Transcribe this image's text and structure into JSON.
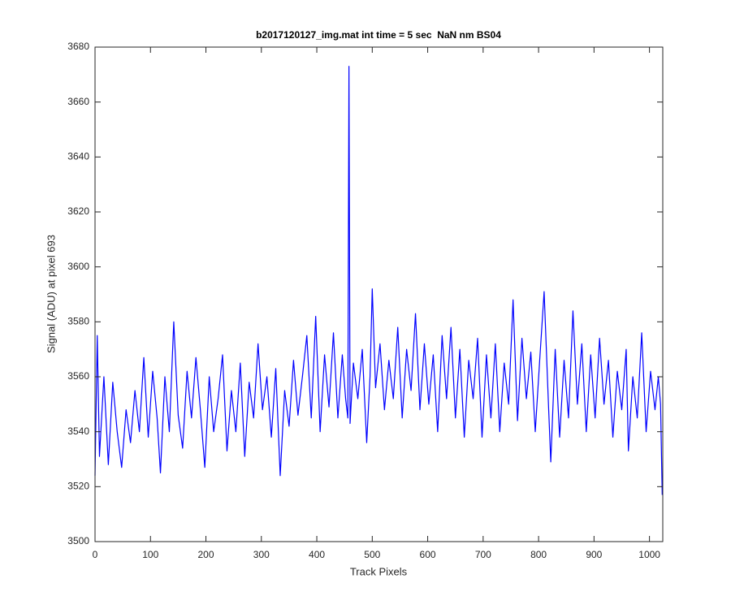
{
  "chart_data": {
    "type": "line",
    "title": "b2017120127_img.mat int time = 5 sec  NaN nm BS04",
    "x_label": "Track Pixels",
    "y_label": "Signal (ADU) at pixel 693",
    "xlim": [
      0,
      1024
    ],
    "ylim": [
      3500,
      3680
    ],
    "xticks": [
      0,
      100,
      200,
      300,
      400,
      500,
      600,
      700,
      800,
      900,
      1000
    ],
    "yticks": [
      3500,
      3520,
      3540,
      3560,
      3580,
      3600,
      3620,
      3640,
      3660,
      3680
    ],
    "grid": false,
    "x": [
      0,
      4,
      8,
      16,
      24,
      32,
      40,
      48,
      56,
      64,
      72,
      80,
      88,
      96,
      104,
      112,
      118,
      126,
      134,
      142,
      150,
      158,
      166,
      174,
      182,
      190,
      198,
      206,
      214,
      222,
      230,
      238,
      246,
      254,
      262,
      270,
      278,
      286,
      294,
      302,
      310,
      318,
      326,
      334,
      342,
      350,
      358,
      366,
      374,
      382,
      390,
      398,
      406,
      414,
      422,
      430,
      438,
      446,
      452,
      456,
      458,
      460,
      466,
      474,
      482,
      490,
      496,
      500,
      506,
      514,
      522,
      530,
      538,
      546,
      554,
      562,
      570,
      578,
      586,
      594,
      602,
      610,
      618,
      626,
      634,
      642,
      650,
      658,
      666,
      674,
      682,
      690,
      698,
      706,
      714,
      722,
      730,
      738,
      746,
      754,
      762,
      770,
      778,
      786,
      794,
      802,
      810,
      818,
      822,
      830,
      838,
      846,
      854,
      862,
      870,
      878,
      886,
      894,
      902,
      910,
      918,
      926,
      934,
      942,
      950,
      958,
      962,
      970,
      978,
      986,
      994,
      1002,
      1010,
      1016,
      1020,
      1023
    ],
    "series": [
      {
        "color": "#0000ff",
        "values": [
          3524,
          3575,
          3531,
          3560,
          3528,
          3558,
          3540,
          3527,
          3548,
          3536,
          3555,
          3540,
          3567,
          3538,
          3562,
          3545,
          3525,
          3560,
          3540,
          3580,
          3546,
          3534,
          3562,
          3545,
          3567,
          3548,
          3527,
          3560,
          3540,
          3552,
          3568,
          3533,
          3555,
          3540,
          3565,
          3531,
          3558,
          3545,
          3572,
          3548,
          3560,
          3538,
          3563,
          3524,
          3555,
          3542,
          3566,
          3546,
          3560,
          3575,
          3545,
          3582,
          3540,
          3568,
          3549,
          3576,
          3545,
          3568,
          3552,
          3545,
          3673,
          3543,
          3565,
          3552,
          3570,
          3536,
          3560,
          3592,
          3556,
          3572,
          3548,
          3566,
          3552,
          3578,
          3545,
          3570,
          3555,
          3583,
          3548,
          3572,
          3550,
          3568,
          3540,
          3575,
          3552,
          3578,
          3545,
          3570,
          3538,
          3566,
          3552,
          3574,
          3538,
          3568,
          3545,
          3572,
          3540,
          3565,
          3550,
          3588,
          3544,
          3574,
          3552,
          3569,
          3540,
          3566,
          3591,
          3549,
          3529,
          3570,
          3538,
          3566,
          3545,
          3584,
          3550,
          3572,
          3540,
          3568,
          3545,
          3574,
          3550,
          3566,
          3538,
          3562,
          3548,
          3570,
          3533,
          3560,
          3545,
          3576,
          3540,
          3562,
          3548,
          3560,
          3550,
          3517
        ]
      }
    ]
  }
}
